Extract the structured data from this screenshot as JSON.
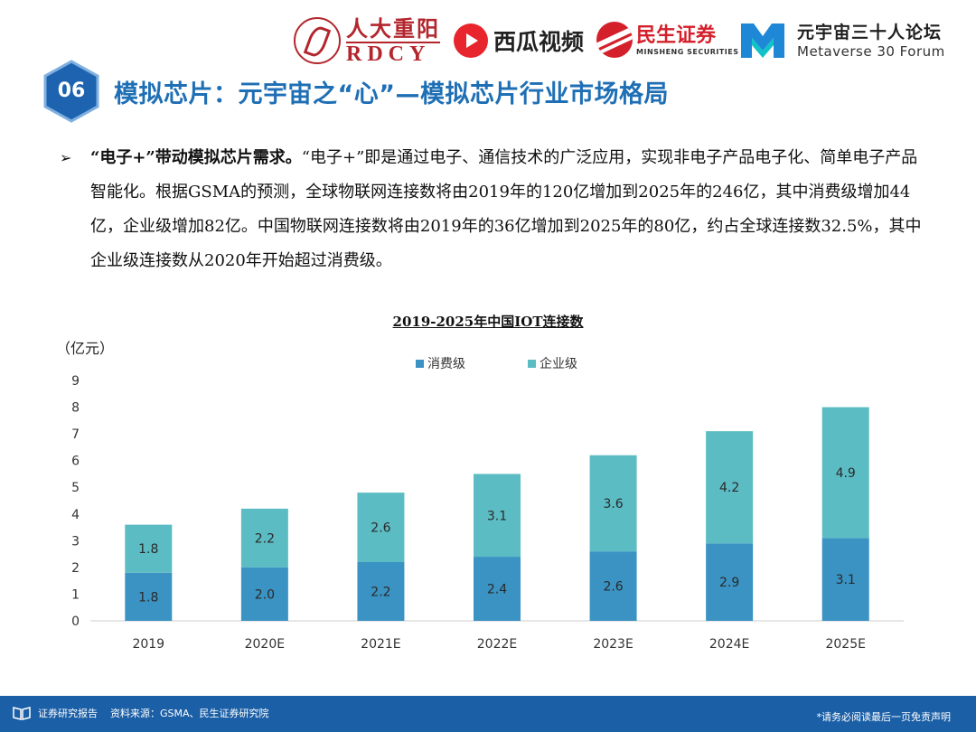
{
  "header": {
    "logo_rdcy_cn": "人大重阳",
    "logo_rdcy_en": "RDCY",
    "logo_xigua": "西瓜视频",
    "logo_minsheng_cn": "民生证券",
    "logo_minsheng_en": "MINSHENG SECURITIES",
    "logo_forum_cn": "元宇宙三十人论坛",
    "logo_forum_en": "Metaverse 30 Forum"
  },
  "section": {
    "number": "06",
    "title": "模拟芯片：元宇宙之“心”—模拟芯片行业市场格局"
  },
  "paragraph": {
    "bullet": "➢",
    "lead": "“电子+”带动模拟芯片需求。",
    "text": "“电子+”即是通过电子、通信技术的广泛应用，实现非电子产品电子化、简单电子产品智能化。根据GSMA的预测，全球物联网连接数将由2019年的120亿增加到2025年的246亿，其中消费级增加44亿，企业级增加82亿。中国物联网连接数将由2019年的36亿增加到2025年的80亿，约占全球连接数32.5%，其中企业级连接数从2020年开始超过消费级。"
  },
  "chart_data": {
    "type": "bar",
    "stacked": true,
    "title": "2019-2025年中国IOT连接数",
    "ylabel": "（亿元）",
    "categories": [
      "2019",
      "2020E",
      "2021E",
      "2022E",
      "2023E",
      "2024E",
      "2025E"
    ],
    "ylim": [
      0,
      9
    ],
    "yticks": [
      "0",
      "1",
      "2",
      "3",
      "4",
      "5",
      "6",
      "7",
      "8",
      "9"
    ],
    "legend_position": "top",
    "series": [
      {
        "name": "消费级",
        "color": "#3a93c3",
        "values": [
          1.8,
          2.0,
          2.2,
          2.4,
          2.6,
          2.9,
          3.1
        ],
        "labels": [
          "1.8",
          "2.0",
          "2.2",
          "2.4",
          "2.6",
          "2.9",
          "3.1"
        ]
      },
      {
        "name": "企业级",
        "color": "#5bbcc4",
        "values": [
          1.8,
          2.2,
          2.6,
          3.1,
          3.6,
          4.2,
          4.9
        ],
        "labels": [
          "1.8",
          "2.2",
          "2.6",
          "3.1",
          "3.6",
          "4.2",
          "4.9"
        ]
      }
    ]
  },
  "footer": {
    "report": "证券研究报告",
    "source": "资料来源：GSMA、民生证券研究院",
    "disclaimer": "*请务必阅读最后一页免责声明"
  },
  "colors": {
    "title_blue": "#1f6fb5",
    "badge_blue": "#1e63b0",
    "footer_blue": "#1b5fa6",
    "brand_red": "#b3262d"
  }
}
